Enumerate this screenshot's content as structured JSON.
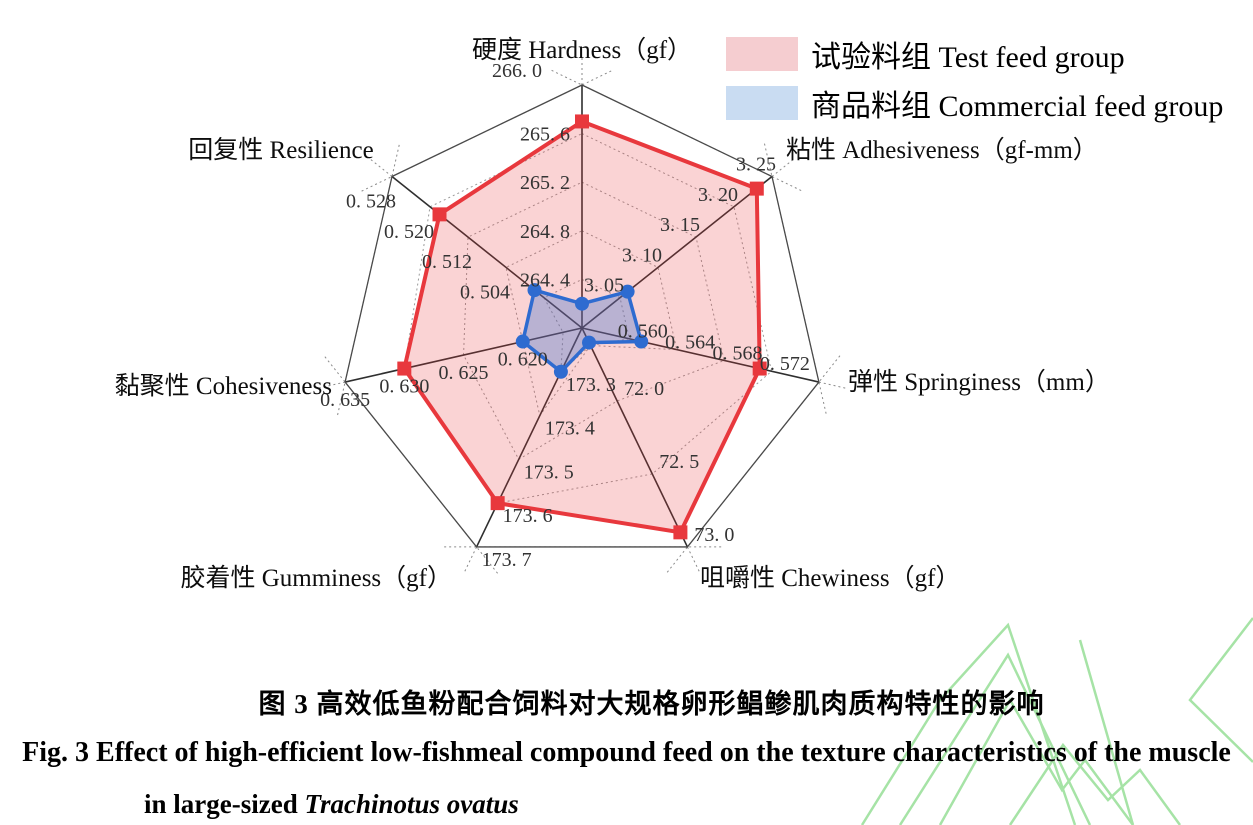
{
  "legend": {
    "items": [
      {
        "label": "试验料组 Test feed group",
        "swatch": "#f5cdd0"
      },
      {
        "label": "商品料组 Commercial feed group",
        "swatch": "#c9dcf2"
      }
    ]
  },
  "caption": {
    "line_cn": "图 3  高效低鱼粉配合饲料对大规格卵形鲳鲹肌肉质构特性的影响",
    "line_en": "Fig. 3    Effect of high-efficient low-fishmeal compound feed on the texture characteristics of the muscle",
    "line_en2_prefix": "in large-sized ",
    "line_en2_species": "Trachinotus ovatus"
  },
  "chart_data": {
    "type": "radar",
    "grid": "dashed-web, 5 levels, solid heptagon outline",
    "legend_position": "top-right",
    "axes": [
      {
        "label": "硬度 Hardness（gf）",
        "min": 264.0,
        "max": 266.0,
        "step": 0.4,
        "decimals": 1,
        "ticks": [
          264.4,
          264.8,
          265.2,
          265.6,
          266.0
        ]
      },
      {
        "label": "粘性 Adhesiveness（gf-mm）",
        "min": 3.0,
        "max": 3.25,
        "step": 0.05,
        "decimals": 2,
        "ticks": [
          3.05,
          3.1,
          3.15,
          3.2,
          3.25
        ]
      },
      {
        "label": "弹性 Springiness（mm）",
        "min": 0.552,
        "max": 0.572,
        "step": 0.004,
        "decimals": 3,
        "ticks": [
          0.56,
          0.564,
          0.568,
          0.572
        ]
      },
      {
        "label": "咀嚼性 Chewiness（gf）",
        "min": 71.5,
        "max": 73.0,
        "step": 0.5,
        "decimals": 1,
        "ticks": [
          72.0,
          72.5,
          73.0
        ]
      },
      {
        "label": "胶着性 Gumminess（gf）",
        "min": 173.2,
        "max": 173.7,
        "step": 0.1,
        "decimals": 1,
        "ticks": [
          173.3,
          173.4,
          173.5,
          173.6,
          173.7
        ]
      },
      {
        "label": "黏聚性 Cohesiveness",
        "min": 0.615,
        "max": 0.635,
        "step": 0.005,
        "decimals": 3,
        "ticks": [
          0.62,
          0.625,
          0.63,
          0.635
        ]
      },
      {
        "label": "回复性 Resilience",
        "min": 0.488,
        "max": 0.528,
        "step": 0.008,
        "decimals": 3,
        "ticks": [
          0.504,
          0.512,
          0.52,
          0.528
        ]
      }
    ],
    "series": [
      {
        "name": "试验料组 Test feed group",
        "marker": "square",
        "color": "#e8383d",
        "fill": "rgba(232,56,61,0.22)",
        "values": [
          265.7,
          3.23,
          0.567,
          72.9,
          173.6,
          0.63,
          0.518
        ]
      },
      {
        "name": "商品料组 Commercial feed group",
        "marker": "circle",
        "color": "#2e6bd0",
        "fill": "rgba(63,118,207,0.35)",
        "values": [
          264.2,
          3.06,
          0.557,
          71.6,
          173.3,
          0.62,
          0.498
        ]
      }
    ]
  },
  "watermark_color": "#a6e3a6"
}
